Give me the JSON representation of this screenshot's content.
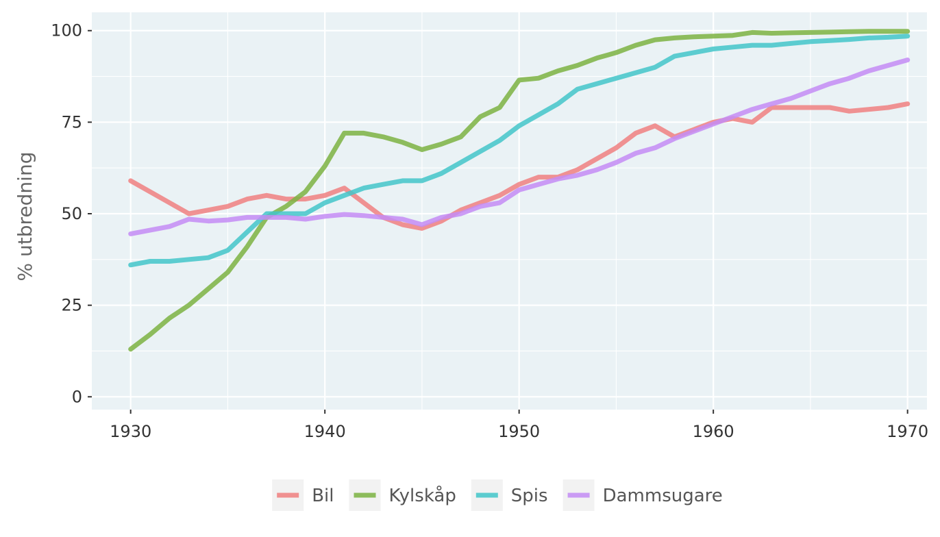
{
  "colors": {
    "panel_background": "#eaf2f5",
    "grid": "#ffffff",
    "legend_key_background": "#f2f2f2"
  },
  "chart_data": {
    "type": "line",
    "ylabel": "% utbredning",
    "xlim": [
      1928,
      1971
    ],
    "ylim": [
      -3.5,
      105
    ],
    "x_ticks": [
      1930,
      1940,
      1950,
      1960,
      1970
    ],
    "y_ticks": [
      0,
      25,
      50,
      75,
      100
    ],
    "grid": true,
    "legend_position": "bottom",
    "x": [
      1930,
      1931,
      1932,
      1933,
      1934,
      1935,
      1936,
      1937,
      1938,
      1939,
      1940,
      1941,
      1942,
      1943,
      1944,
      1945,
      1946,
      1947,
      1948,
      1949,
      1950,
      1951,
      1952,
      1953,
      1954,
      1955,
      1956,
      1957,
      1958,
      1959,
      1960,
      1961,
      1962,
      1963,
      1964,
      1965,
      1966,
      1967,
      1968,
      1969,
      1970
    ],
    "series": [
      {
        "name": "Bil",
        "color": "#f08080",
        "values": [
          59,
          56,
          53,
          50,
          51,
          52,
          54,
          55,
          54,
          54,
          55,
          57,
          53,
          49,
          47,
          46,
          48,
          51,
          53,
          55,
          58,
          60,
          60,
          62,
          65,
          68,
          72,
          74,
          71,
          73,
          75,
          76,
          75,
          79,
          79,
          79,
          79,
          78,
          78.5,
          79,
          80
        ]
      },
      {
        "name": "Kylskåp",
        "color": "#7cb342",
        "values": [
          13,
          17,
          21.5,
          25,
          29.5,
          34,
          41,
          49,
          52,
          56,
          63,
          72,
          72,
          71,
          69.5,
          67.5,
          69,
          71,
          76.5,
          79,
          86.5,
          87,
          89,
          90.5,
          92.5,
          94,
          96,
          97.5,
          98,
          98.3,
          98.5,
          98.7,
          99.5,
          99.3,
          99.4,
          99.5,
          99.6,
          99.7,
          99.8,
          99.8,
          99.8
        ]
      },
      {
        "name": "Spis",
        "color": "#43c6c9",
        "values": [
          36,
          37,
          37,
          37.5,
          38,
          40,
          45,
          50,
          50,
          50,
          53,
          55,
          57,
          58,
          59,
          59,
          61,
          64,
          67,
          70,
          74,
          77,
          80,
          84,
          85.5,
          87,
          88.5,
          90,
          93,
          94,
          95,
          95.5,
          96,
          96,
          96.5,
          97,
          97.3,
          97.6,
          98,
          98.2,
          98.5
        ]
      },
      {
        "name": "Dammsugare",
        "color": "#c48cf5",
        "values": [
          44.5,
          45.5,
          46.5,
          48.5,
          48,
          48.3,
          49,
          49,
          49,
          48.5,
          49.3,
          49.8,
          49.5,
          49,
          48.5,
          47,
          49,
          50,
          52,
          53,
          56.5,
          58,
          59.5,
          60.5,
          62,
          64,
          66.5,
          68,
          70.5,
          72.5,
          74.5,
          76.5,
          78.5,
          80,
          81.5,
          83.5,
          85.5,
          87,
          89,
          90.5,
          92
        ]
      }
    ]
  }
}
